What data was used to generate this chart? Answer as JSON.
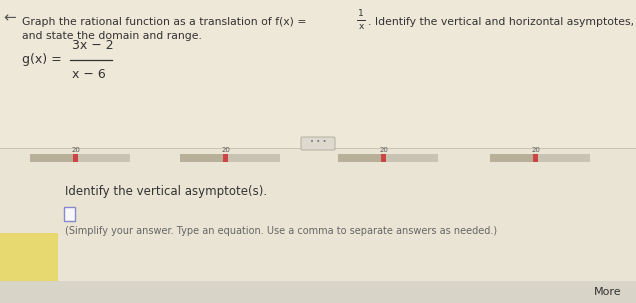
{
  "bg_color_top": "#eee8d8",
  "bg_color_bottom": "#eae4d4",
  "white_bg": "#f0ece0",
  "divider_color": "#c8c4b4",
  "font_color": "#333333",
  "light_font_color": "#666666",
  "yellow_box_color": "#e8d870",
  "slider_bg": "#c8c4b4",
  "slider_indicator": "#cc4444",
  "slider_left_color": "#b8b098",
  "dots_bg": "#dedad0",
  "dots_border": "#aaa898",
  "answer_box_border": "#8888cc",
  "bottom_bar_color": "#d8d4c8",
  "more_color": "#333333",
  "arrow_color": "#555555",
  "title1": "Graph the rational function as a translation of f(x) = ",
  "title2": ". Identify the vertical and horizontal asymptotes,",
  "title3": "and state the domain and range.",
  "gx_prefix": "g(x) = ",
  "gx_num": "3x − 2",
  "gx_den": "x − 6",
  "fx_num": "1",
  "fx_den": "x",
  "identify_text": "Identify the vertical asymptote(s).",
  "instruction_text": "(Simplify your answer. Type an equation. Use a comma to separate answers as needed.)",
  "more_text": "More",
  "slider_label": "20",
  "dots_text": "• • •"
}
